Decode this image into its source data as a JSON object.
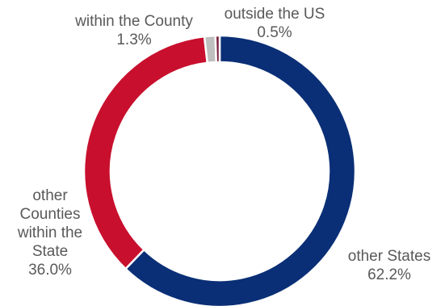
{
  "chart_data": {
    "type": "donut",
    "title": "",
    "slices": [
      {
        "label": "other States",
        "value": 62.2,
        "display": "62.2%",
        "color": "#0a2f76"
      },
      {
        "label": "other Counties within the State",
        "value": 36.0,
        "display": "36.0%",
        "color": "#c8102e"
      },
      {
        "label": "within the County",
        "value": 1.3,
        "display": "1.3%",
        "color": "#bfbfbf"
      },
      {
        "label": "outside the US",
        "value": 0.5,
        "display": "0.5%",
        "color": "#7a1d3c"
      }
    ],
    "start_angle": "12 o'clock",
    "direction": "clockwise",
    "legend": "none",
    "labels": {
      "states_name": "other States",
      "states_value": "62.2%",
      "counties_line1": "other",
      "counties_line2": "Counties",
      "counties_line3": "within the",
      "counties_line4": "State",
      "counties_value": "36.0%",
      "county_name": "within the County",
      "county_value": "1.3%",
      "us_name": "outside the US",
      "us_value": "0.5%"
    }
  }
}
